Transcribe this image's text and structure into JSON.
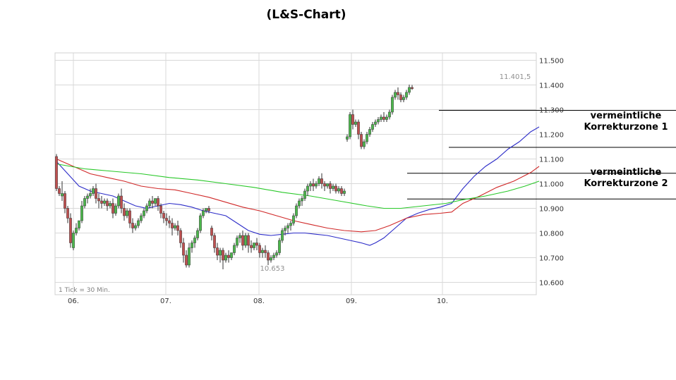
{
  "chart_data": {
    "type": "candlestick",
    "title": "(L&S-Chart)",
    "tick_note": "1 Tick = 30 Min.",
    "xlabels": [
      "06.",
      "07.",
      "08.",
      "09.",
      "10."
    ],
    "ylim": [
      10550,
      11530
    ],
    "yticks": [
      10600,
      10700,
      10800,
      10900,
      11000,
      11100,
      11200,
      11300,
      11400,
      11500
    ],
    "ytick_labels": [
      "10.600",
      "10.700",
      "10.800",
      "10.900",
      "11.000",
      "11.100",
      "11.200",
      "11.300",
      "11.400",
      "11.500"
    ],
    "annotations": {
      "high_label": "11.401,5",
      "low_label": "10.653",
      "zone1": [
        "vermeintliche",
        "Korrekturzone 1"
      ],
      "zone2": [
        "vermeintliche",
        "Korrekturzone 2"
      ]
    },
    "zones": [
      {
        "upper": 11297,
        "lower": 11147
      },
      {
        "upper": 11042,
        "lower": 10938
      }
    ],
    "colors": {
      "up": "#4cb84c",
      "down": "#c05050",
      "ma_fast": "#2c2cc8",
      "ma_mid": "#d02828",
      "ma_slow": "#28c828",
      "grid": "#d8d8d8"
    },
    "series": [
      {
        "color": "#2c2cc8",
        "points": [
          [
            0,
            11090
          ],
          [
            4,
            11040
          ],
          [
            8,
            10990
          ],
          [
            12,
            10970
          ],
          [
            16,
            10960
          ],
          [
            20,
            10950
          ],
          [
            24,
            10930
          ],
          [
            28,
            10910
          ],
          [
            32,
            10900
          ],
          [
            36,
            10910
          ],
          [
            40,
            10920
          ],
          [
            44,
            10915
          ],
          [
            48,
            10905
          ],
          [
            52,
            10890
          ],
          [
            56,
            10880
          ],
          [
            60,
            10870
          ],
          [
            64,
            10840
          ],
          [
            68,
            10810
          ],
          [
            72,
            10795
          ],
          [
            76,
            10790
          ],
          [
            80,
            10795
          ],
          [
            84,
            10800
          ],
          [
            88,
            10800
          ],
          [
            92,
            10795
          ],
          [
            96,
            10790
          ],
          [
            100,
            10780
          ],
          [
            104,
            10770
          ],
          [
            108,
            10760
          ],
          [
            111,
            10750
          ],
          [
            113,
            10760
          ],
          [
            116,
            10780
          ],
          [
            120,
            10820
          ],
          [
            124,
            10860
          ],
          [
            128,
            10880
          ],
          [
            132,
            10895
          ],
          [
            136,
            10905
          ],
          [
            140,
            10920
          ],
          [
            144,
            10980
          ],
          [
            148,
            11030
          ],
          [
            152,
            11070
          ],
          [
            156,
            11100
          ],
          [
            160,
            11140
          ],
          [
            164,
            11170
          ],
          [
            168,
            11210
          ],
          [
            171,
            11230
          ]
        ]
      },
      {
        "color": "#d02828",
        "points": [
          [
            0,
            11100
          ],
          [
            6,
            11070
          ],
          [
            12,
            11040
          ],
          [
            18,
            11025
          ],
          [
            24,
            11010
          ],
          [
            30,
            10990
          ],
          [
            36,
            10980
          ],
          [
            42,
            10975
          ],
          [
            48,
            10960
          ],
          [
            54,
            10945
          ],
          [
            60,
            10925
          ],
          [
            66,
            10905
          ],
          [
            72,
            10890
          ],
          [
            78,
            10870
          ],
          [
            84,
            10850
          ],
          [
            90,
            10835
          ],
          [
            96,
            10820
          ],
          [
            102,
            10810
          ],
          [
            108,
            10805
          ],
          [
            113,
            10810
          ],
          [
            118,
            10830
          ],
          [
            124,
            10860
          ],
          [
            130,
            10875
          ],
          [
            136,
            10880
          ],
          [
            140,
            10885
          ],
          [
            144,
            10920
          ],
          [
            150,
            10950
          ],
          [
            156,
            10985
          ],
          [
            162,
            11010
          ],
          [
            168,
            11045
          ],
          [
            171,
            11070
          ]
        ]
      },
      {
        "color": "#28c828",
        "points": [
          [
            0,
            11080
          ],
          [
            10,
            11060
          ],
          [
            20,
            11050
          ],
          [
            30,
            11040
          ],
          [
            40,
            11025
          ],
          [
            50,
            11015
          ],
          [
            60,
            11000
          ],
          [
            70,
            10985
          ],
          [
            80,
            10965
          ],
          [
            90,
            10950
          ],
          [
            100,
            10930
          ],
          [
            110,
            10910
          ],
          [
            116,
            10900
          ],
          [
            122,
            10900
          ],
          [
            130,
            10910
          ],
          [
            138,
            10920
          ],
          [
            144,
            10935
          ],
          [
            152,
            10950
          ],
          [
            160,
            10970
          ],
          [
            166,
            10990
          ],
          [
            171,
            11010
          ]
        ]
      }
    ],
    "candles": [
      [
        11110,
        11120,
        10980,
        10970
      ],
      [
        10980,
        10990,
        10960,
        10950
      ],
      [
        10950,
        11010,
        10960,
        10930
      ],
      [
        10960,
        10970,
        10900,
        10880
      ],
      [
        10900,
        10910,
        10860,
        10840
      ],
      [
        10860,
        10880,
        10760,
        10740
      ],
      [
        10740,
        10810,
        10800,
        10730
      ],
      [
        10800,
        10840,
        10820,
        10790
      ],
      [
        10820,
        10850,
        10850,
        10810
      ],
      [
        10850,
        10930,
        10910,
        10840
      ],
      [
        10910,
        10950,
        10940,
        10900
      ],
      [
        10940,
        10960,
        10950,
        10920
      ],
      [
        10950,
        10980,
        10960,
        10940
      ],
      [
        10960,
        10990,
        10980,
        10950
      ],
      [
        10980,
        11000,
        10940,
        10920
      ],
      [
        10940,
        10960,
        10930,
        10900
      ],
      [
        10930,
        10950,
        10920,
        10900
      ],
      [
        10920,
        10940,
        10930,
        10910
      ],
      [
        10930,
        10940,
        10910,
        10890
      ],
      [
        10910,
        10930,
        10920,
        10900
      ],
      [
        10920,
        10940,
        10880,
        10860
      ],
      [
        10880,
        10920,
        10910,
        10870
      ],
      [
        10910,
        10960,
        10950,
        10900
      ],
      [
        10950,
        10980,
        10900,
        10880
      ],
      [
        10900,
        10920,
        10870,
        10850
      ],
      [
        10870,
        10900,
        10890,
        10860
      ],
      [
        10890,
        10900,
        10840,
        10820
      ],
      [
        10840,
        10860,
        10820,
        10800
      ],
      [
        10820,
        10840,
        10830,
        10810
      ],
      [
        10830,
        10860,
        10850,
        10820
      ],
      [
        10850,
        10880,
        10870,
        10840
      ],
      [
        10870,
        10900,
        10890,
        10860
      ],
      [
        10890,
        10920,
        10910,
        10880
      ],
      [
        10910,
        10940,
        10930,
        10900
      ],
      [
        10930,
        10950,
        10920,
        10900
      ],
      [
        10920,
        10940,
        10940,
        10910
      ],
      [
        10940,
        10950,
        10910,
        10890
      ],
      [
        10910,
        10920,
        10880,
        10860
      ],
      [
        10880,
        10890,
        10860,
        10840
      ],
      [
        10860,
        10880,
        10850,
        10830
      ],
      [
        10850,
        10870,
        10840,
        10820
      ],
      [
        10840,
        10860,
        10820,
        10790
      ],
      [
        10820,
        10840,
        10830,
        10810
      ],
      [
        10830,
        10850,
        10810,
        10790
      ],
      [
        10810,
        10820,
        10760,
        10740
      ],
      [
        10760,
        10780,
        10710,
        10680
      ],
      [
        10710,
        10730,
        10670,
        10660
      ],
      [
        10670,
        10760,
        10740,
        10660
      ],
      [
        10740,
        10770,
        10760,
        10720
      ],
      [
        10760,
        10790,
        10780,
        10740
      ],
      [
        10780,
        10820,
        10810,
        10770
      ],
      [
        10810,
        10880,
        10870,
        10800
      ],
      [
        10870,
        10900,
        10890,
        10860
      ],
      [
        10890,
        10900,
        10900,
        10880
      ],
      [
        10900,
        10910,
        10890,
        10880
      ],
      [
        10820,
        10830,
        10790,
        10770
      ],
      [
        10790,
        10800,
        10740,
        10720
      ],
      [
        10740,
        10760,
        10710,
        10690
      ],
      [
        10710,
        10740,
        10730,
        10680
      ],
      [
        10730,
        10740,
        10690,
        10653
      ],
      [
        10690,
        10720,
        10710,
        10680
      ],
      [
        10710,
        10730,
        10700,
        10680
      ],
      [
        10700,
        10720,
        10720,
        10690
      ],
      [
        10720,
        10760,
        10750,
        10710
      ],
      [
        10750,
        10790,
        10780,
        10740
      ],
      [
        10780,
        10800,
        10790,
        10760
      ],
      [
        10790,
        10810,
        10750,
        10730
      ],
      [
        10750,
        10800,
        10790,
        10740
      ],
      [
        10790,
        10800,
        10750,
        10720
      ],
      [
        10750,
        10770,
        10740,
        10720
      ],
      [
        10740,
        10760,
        10760,
        10730
      ],
      [
        10760,
        10780,
        10750,
        10730
      ],
      [
        10750,
        10760,
        10720,
        10700
      ],
      [
        10720,
        10740,
        10730,
        10700
      ],
      [
        10730,
        10750,
        10720,
        10700
      ],
      [
        10720,
        10730,
        10690,
        10670
      ],
      [
        10690,
        10710,
        10700,
        10680
      ],
      [
        10700,
        10720,
        10710,
        10690
      ],
      [
        10710,
        10730,
        10720,
        10700
      ],
      [
        10720,
        10780,
        10770,
        10710
      ],
      [
        10770,
        10820,
        10810,
        10760
      ],
      [
        10810,
        10830,
        10820,
        10790
      ],
      [
        10820,
        10840,
        10830,
        10800
      ],
      [
        10830,
        10850,
        10840,
        10810
      ],
      [
        10840,
        10880,
        10870,
        10830
      ],
      [
        10870,
        10920,
        10910,
        10860
      ],
      [
        10910,
        10940,
        10930,
        10900
      ],
      [
        10930,
        10950,
        10940,
        10910
      ],
      [
        10940,
        10980,
        10970,
        10930
      ],
      [
        10970,
        11000,
        10990,
        10950
      ],
      [
        10990,
        11010,
        11000,
        10970
      ],
      [
        11000,
        11020,
        10990,
        10970
      ],
      [
        10990,
        11010,
        11000,
        10980
      ],
      [
        11000,
        11030,
        11020,
        10990
      ],
      [
        11020,
        11042,
        11000,
        10980
      ],
      [
        11000,
        11010,
        10990,
        10970
      ],
      [
        10990,
        11000,
        11000,
        10980
      ],
      [
        11000,
        11010,
        10980,
        10960
      ],
      [
        10980,
        11000,
        10990,
        10970
      ],
      [
        10990,
        11000,
        10970,
        10960
      ],
      [
        10970,
        10990,
        10980,
        10960
      ],
      [
        10980,
        10990,
        10960,
        10950
      ],
      [
        10960,
        10980,
        10970,
        10950
      ],
      [
        11180,
        11200,
        11190,
        11170
      ],
      [
        11190,
        11290,
        11280,
        11180
      ],
      [
        11280,
        11300,
        11240,
        11220
      ],
      [
        11240,
        11260,
        11250,
        11230
      ],
      [
        11250,
        11260,
        11200,
        11180
      ],
      [
        11200,
        11210,
        11150,
        11140
      ],
      [
        11150,
        11180,
        11170,
        11140
      ],
      [
        11170,
        11210,
        11200,
        11160
      ],
      [
        11200,
        11230,
        11220,
        11190
      ],
      [
        11220,
        11250,
        11240,
        11210
      ],
      [
        11240,
        11260,
        11250,
        11230
      ],
      [
        11250,
        11270,
        11260,
        11240
      ],
      [
        11260,
        11280,
        11270,
        11250
      ],
      [
        11270,
        11290,
        11260,
        11250
      ],
      [
        11260,
        11280,
        11270,
        11250
      ],
      [
        11270,
        11300,
        11290,
        11260
      ],
      [
        11290,
        11360,
        11350,
        11280
      ],
      [
        11350,
        11380,
        11370,
        11340
      ],
      [
        11370,
        11390,
        11360,
        11340
      ],
      [
        11360,
        11370,
        11340,
        11330
      ],
      [
        11340,
        11360,
        11350,
        11330
      ],
      [
        11350,
        11380,
        11370,
        11340
      ],
      [
        11370,
        11401.5,
        11390,
        11360
      ],
      [
        11390,
        11400,
        11385,
        11380
      ]
    ]
  }
}
